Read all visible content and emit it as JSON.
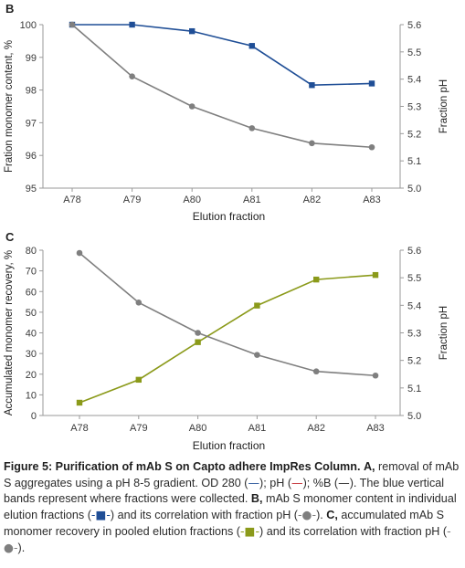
{
  "chart_data": [
    {
      "panel_label": "B",
      "type": "line",
      "categories": [
        "A78",
        "A79",
        "A80",
        "A81",
        "A82",
        "A83"
      ],
      "xlabel": "Elution fraction",
      "ylabel": "Fration monomer content, %",
      "y2label": "Fraction pH",
      "ylim": [
        95,
        100
      ],
      "y2lim": [
        5.0,
        5.6
      ],
      "yticks": [
        "95",
        "96",
        "97",
        "98",
        "99",
        "100"
      ],
      "y2ticks": [
        "5.0",
        "5.1",
        "5.2",
        "5.3",
        "5.4",
        "5.5",
        "5.6"
      ],
      "grid": false,
      "series": [
        {
          "axis": "left",
          "marker": "square",
          "color": "#1f4e96",
          "values": [
            100.0,
            100.0,
            99.8,
            99.35,
            98.15,
            98.2
          ]
        },
        {
          "axis": "right",
          "marker": "circle",
          "color": "#7f7f7f",
          "values": [
            5.6,
            5.41,
            5.3,
            5.22,
            5.165,
            5.15
          ]
        }
      ]
    },
    {
      "panel_label": "C",
      "type": "line",
      "categories": [
        "A78",
        "A79",
        "A80",
        "A81",
        "A82",
        "A83"
      ],
      "xlabel": "Elution fraction",
      "ylabel": "Accumulated monomer recovery, %",
      "y2label": "Fraction pH",
      "ylim": [
        0,
        80
      ],
      "y2lim": [
        5.0,
        5.6
      ],
      "yticks": [
        "0",
        "10",
        "20",
        "30",
        "40",
        "50",
        "60",
        "70",
        "80"
      ],
      "y2ticks": [
        "5.0",
        "5.1",
        "5.2",
        "5.3",
        "5.4",
        "5.5",
        "5.6"
      ],
      "grid": false,
      "series": [
        {
          "axis": "left",
          "marker": "square",
          "color": "#8b9a1a",
          "values": [
            6.2,
            17.3,
            35.5,
            53.2,
            65.8,
            68.0
          ]
        },
        {
          "axis": "right",
          "marker": "circle",
          "color": "#7f7f7f",
          "values": [
            5.59,
            5.41,
            5.3,
            5.22,
            5.16,
            5.145
          ]
        }
      ]
    }
  ],
  "caption": {
    "title": "Figure 5: Purification of mAb S on Capto adhere ImpRes Column.",
    "part_a_label": "A,",
    "part_a_text": " removal of mAb S aggregates using a pH 8-5 gradient. OD 280 (",
    "dash1": "—",
    "sep1": "); pH (",
    "dash2": "—",
    "sep2": "); %B (",
    "dash3": "—",
    "sep3": ").",
    "bands_text": " The blue vertical bands represent where fractions were collected.",
    "part_b_label": "B,",
    "part_b_text": " mAb S monomer content in individual elution fractions (",
    "sym_b1": "-■-",
    "part_b_text2": ") and its correlation with fraction pH (",
    "sym_b2": "-●-",
    "part_b_text3": ").",
    "part_c_label": "C,",
    "part_c_text": " accumulated mAb S monomer recovery in pooled elution fractions (",
    "sym_c1": "-■-",
    "part_c_text2": ") and its correlation with fraction pH (",
    "sym_c2": "-●-",
    "part_c_text3": ")."
  },
  "colors": {
    "blue_series": "#1f4e96",
    "green_series": "#8b9a1a",
    "grey_series": "#7f7f7f",
    "od280_dash": "#1f4e96",
    "ph_dash": "#c0272d",
    "pctb_dash": "#222222"
  }
}
